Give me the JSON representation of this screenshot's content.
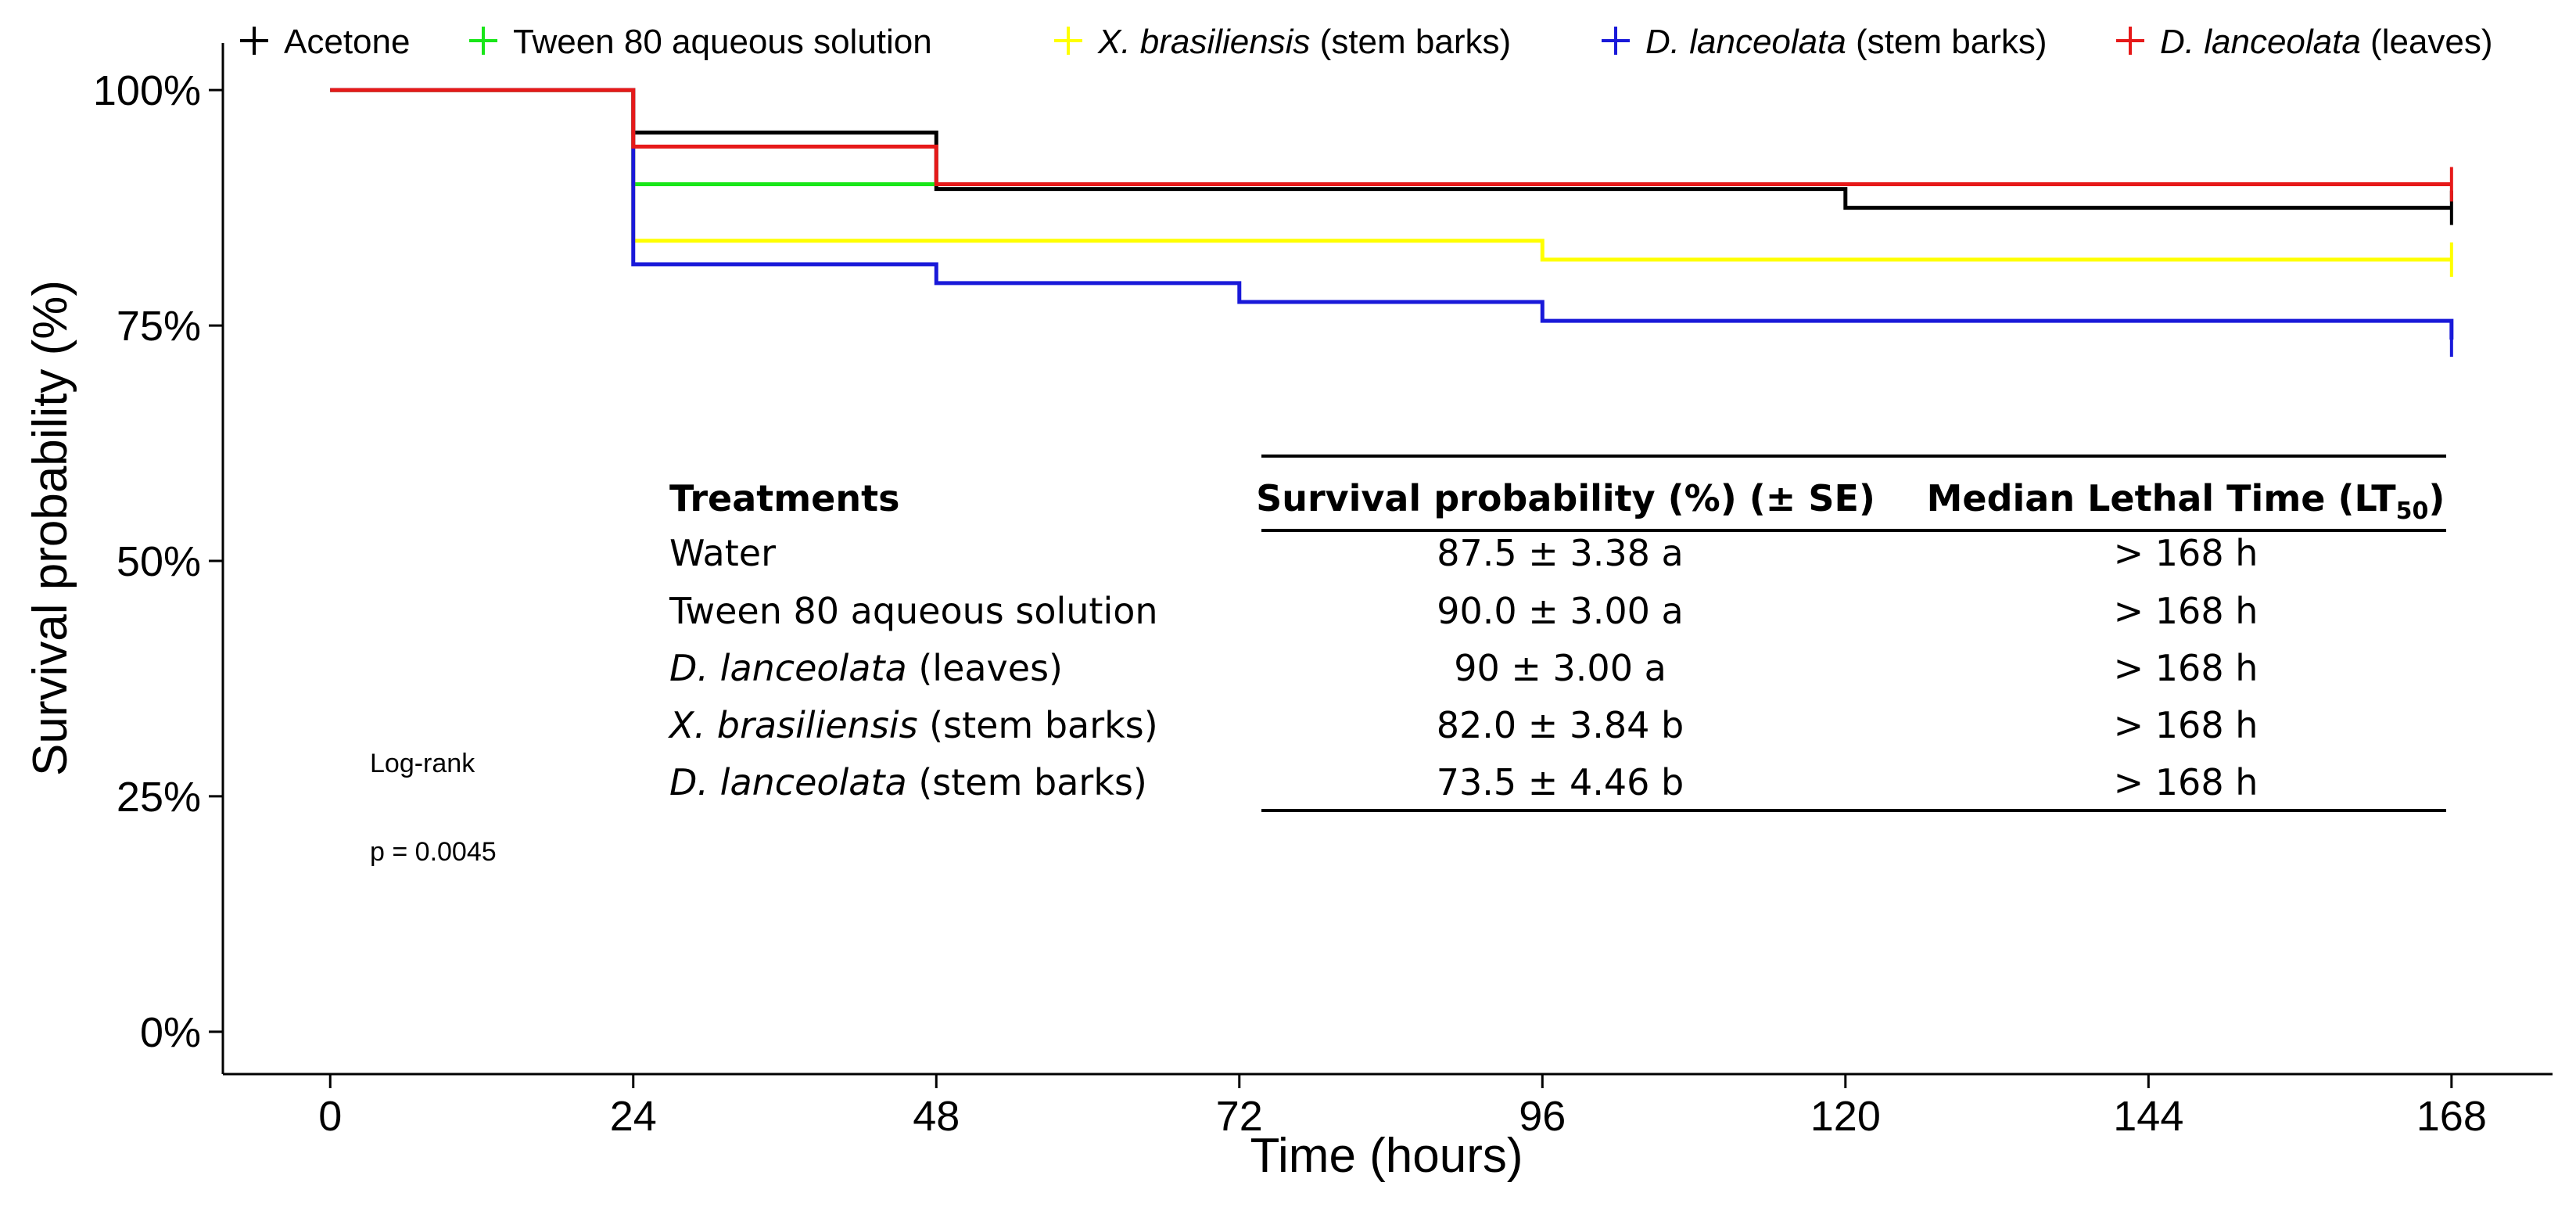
{
  "chart_data": {
    "type": "line",
    "step": true,
    "title": "",
    "xlabel": "Time (hours)",
    "ylabel": "Survival probability (%)",
    "x_ticks": [
      0,
      24,
      48,
      72,
      96,
      120,
      144,
      168
    ],
    "y_ticks": [
      0,
      25,
      50,
      75,
      100
    ],
    "y_tick_suffix": "%",
    "xlim": [
      -8.5,
      176
    ],
    "ylim": [
      -4.5,
      105
    ],
    "legend_position": "top",
    "series": [
      {
        "name": "Acetone",
        "color": "#000000",
        "points": [
          [
            0,
            100
          ],
          [
            24,
            95.5
          ],
          [
            48,
            89.5
          ],
          [
            120,
            87.5
          ],
          [
            168,
            87.5
          ]
        ],
        "censor": [
          168,
          87.5
        ]
      },
      {
        "name": "Tween 80 aqueous solution",
        "color": "#19e619",
        "points": [
          [
            0,
            100
          ],
          [
            24,
            90
          ],
          [
            48,
            90
          ],
          [
            168,
            90
          ]
        ],
        "censor": null
      },
      {
        "name": "X. brasiliensis (stem barks)",
        "color": "#ffff00",
        "points": [
          [
            0,
            100
          ],
          [
            24,
            84
          ],
          [
            96,
            82
          ],
          [
            168,
            82
          ]
        ],
        "censor": [
          168,
          82
        ]
      },
      {
        "name": "D. lanceolata (stem barks)",
        "color": "#1919d9",
        "points": [
          [
            0,
            100
          ],
          [
            24,
            81.5
          ],
          [
            48,
            79.5
          ],
          [
            72,
            77.5
          ],
          [
            96,
            75.5
          ],
          [
            168,
            73.5
          ]
        ],
        "censor": [
          168,
          73.5
        ]
      },
      {
        "name": "D. lanceolata (leaves)",
        "color": "#e61919",
        "points": [
          [
            0,
            100
          ],
          [
            24,
            94
          ],
          [
            48,
            90
          ],
          [
            168,
            90
          ]
        ],
        "censor": [
          168,
          90
        ]
      }
    ],
    "annotations": [
      "Log-rank",
      "p = 0.0045"
    ]
  },
  "legend": [
    {
      "name": "Acetone",
      "color": "#000000",
      "italic": "",
      "rest": "Acetone"
    },
    {
      "name": "Tween 80 aqueous solution",
      "color": "#19e619",
      "italic": "",
      "rest": "Tween 80 aqueous solution"
    },
    {
      "name": "X. brasiliensis (stem barks)",
      "color": "#ffff00",
      "italic": "X. brasiliensis",
      "rest": " (stem barks)"
    },
    {
      "name": "D. lanceolata (stem barks)",
      "color": "#1919d9",
      "italic": "D. lanceolata",
      "rest": " (stem barks)"
    },
    {
      "name": "D. lanceolata (leaves)",
      "color": "#e61919",
      "italic": "D. lanceolata",
      "rest": " (leaves)"
    }
  ],
  "stats": {
    "test": "Log-rank",
    "p_value": "p = 0.0045"
  },
  "table": {
    "headers": {
      "treatments": "Treatments",
      "survival": "Survival probability (%) (± SE)",
      "lt50_main": "Median Lethal Time (LT",
      "lt50_sub": "50",
      "lt50_close": ")"
    },
    "rows": [
      {
        "italic": "",
        "rest": "Water",
        "survival": "87.5 ± 3.38 a",
        "lt50": "> 168 h"
      },
      {
        "italic": "",
        "rest": "Tween 80 aqueous solution",
        "survival": "90.0 ± 3.00 a",
        "lt50": "> 168 h"
      },
      {
        "italic": "D. lanceolata",
        "rest": " (leaves)",
        "survival": "90 ± 3.00 a",
        "lt50": "> 168 h"
      },
      {
        "italic": "X. brasiliensis",
        "rest": " (stem barks)",
        "survival": "82.0 ±  3.84 b",
        "lt50": "> 168 h"
      },
      {
        "italic": "D. lanceolata",
        "rest": " (stem barks)",
        "survival": "73.5 ± 4.46 b",
        "lt50": "> 168 h"
      }
    ]
  }
}
